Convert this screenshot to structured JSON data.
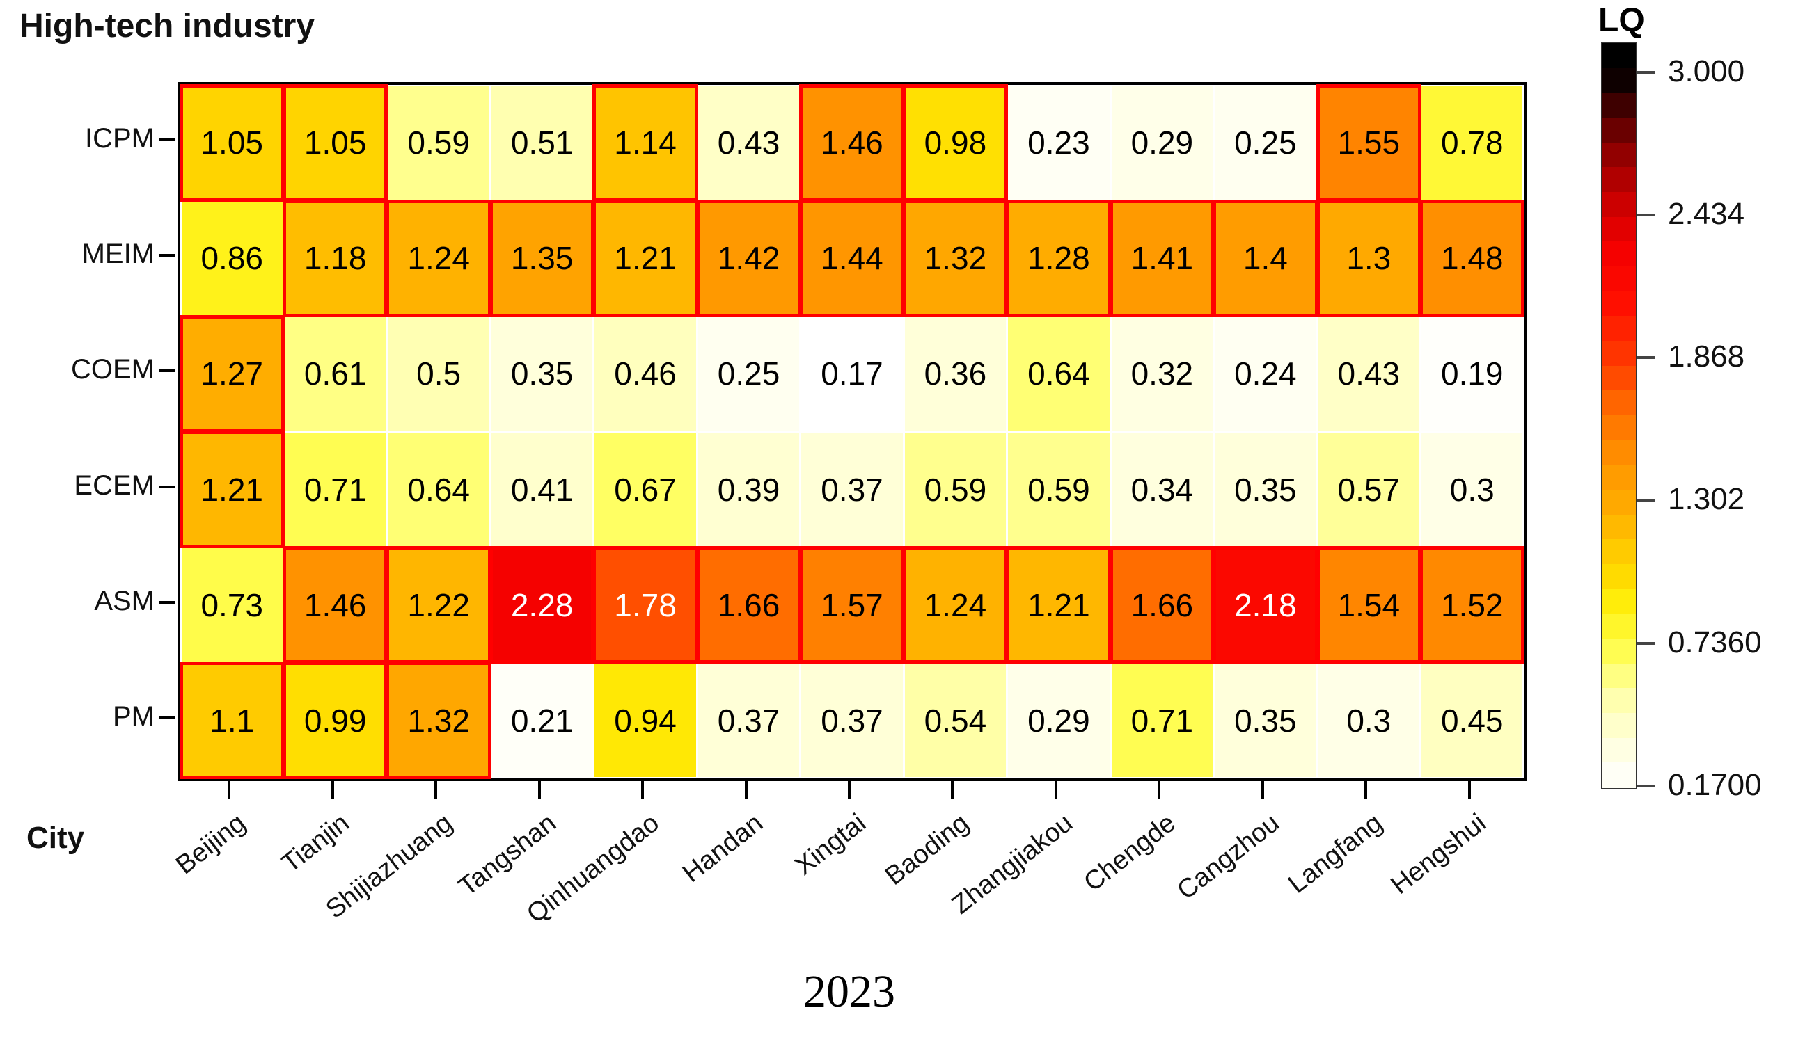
{
  "title": "High-tech industry",
  "x_axis_label": "City",
  "caption": "2023",
  "legend": {
    "title": "LQ",
    "tick_labels": [
      "3.000",
      "2.434",
      "1.868",
      "1.302",
      "0.7360",
      "0.1700"
    ]
  },
  "chart_data": {
    "type": "heatmap",
    "title": "High-tech industry",
    "x_label": "City",
    "period": "2023",
    "categories_x": [
      "Beijing",
      "Tianjin",
      "Shijiazhuang",
      "Tangshan",
      "Qinhuangdao",
      "Handan",
      "Xingtai",
      "Baoding",
      "Zhangjiakou",
      "Chengde",
      "Cangzhou",
      "Langfang",
      "Hengshui"
    ],
    "categories_y": [
      "ICPM",
      "MEIM",
      "COEM",
      "ECEM",
      "ASM",
      "PM"
    ],
    "values": [
      [
        1.05,
        1.05,
        0.59,
        0.51,
        1.14,
        0.43,
        1.46,
        0.98,
        0.23,
        0.29,
        0.25,
        1.55,
        0.78
      ],
      [
        0.86,
        1.18,
        1.24,
        1.35,
        1.21,
        1.42,
        1.44,
        1.32,
        1.28,
        1.41,
        1.4,
        1.3,
        1.48
      ],
      [
        1.27,
        0.61,
        0.5,
        0.35,
        0.46,
        0.25,
        0.17,
        0.36,
        0.64,
        0.32,
        0.24,
        0.43,
        0.19
      ],
      [
        1.21,
        0.71,
        0.64,
        0.41,
        0.67,
        0.39,
        0.37,
        0.59,
        0.59,
        0.34,
        0.35,
        0.57,
        0.3
      ],
      [
        0.73,
        1.46,
        1.22,
        2.28,
        1.78,
        1.66,
        1.57,
        1.24,
        1.21,
        1.66,
        2.18,
        1.54,
        1.52
      ],
      [
        1.1,
        0.99,
        1.32,
        0.21,
        0.94,
        0.37,
        0.37,
        0.54,
        0.29,
        0.71,
        0.35,
        0.3,
        0.45
      ]
    ],
    "colorbar": {
      "title": "LQ",
      "tick_values": [
        3.0,
        2.434,
        1.868,
        1.302,
        0.736,
        0.17
      ],
      "tick_labels": [
        "3.000",
        "2.434",
        "1.868",
        "1.302",
        "0.7360",
        "0.1700"
      ],
      "min": 0.17,
      "max": 3.0
    },
    "highlight_rule": "red cell outline where LQ >= 0.98",
    "highlight_threshold": 0.98,
    "highlight_color": "#FF0000",
    "white_text_threshold": 1.7,
    "colormap_stops": [
      [
        0.17,
        "#FFFFFF"
      ],
      [
        0.28,
        "#FFFFEB"
      ],
      [
        0.4,
        "#FFFFD0"
      ],
      [
        0.55,
        "#FFFFA4"
      ],
      [
        0.68,
        "#FFFF5E"
      ],
      [
        0.8,
        "#FFF72E"
      ],
      [
        0.92,
        "#FFEC06"
      ],
      [
        1.0,
        "#FFDC00"
      ],
      [
        1.12,
        "#FFC800"
      ],
      [
        1.25,
        "#FFB000"
      ],
      [
        1.4,
        "#FF9C00"
      ],
      [
        1.55,
        "#FF8400"
      ],
      [
        1.7,
        "#FF6400"
      ],
      [
        1.85,
        "#FF3C00"
      ],
      [
        2.1,
        "#FF0D00"
      ],
      [
        2.3,
        "#F40000"
      ],
      [
        2.5,
        "#C80000"
      ],
      [
        2.7,
        "#8B0000"
      ],
      [
        2.85,
        "#4A0000"
      ],
      [
        3.0,
        "#000000"
      ]
    ]
  }
}
